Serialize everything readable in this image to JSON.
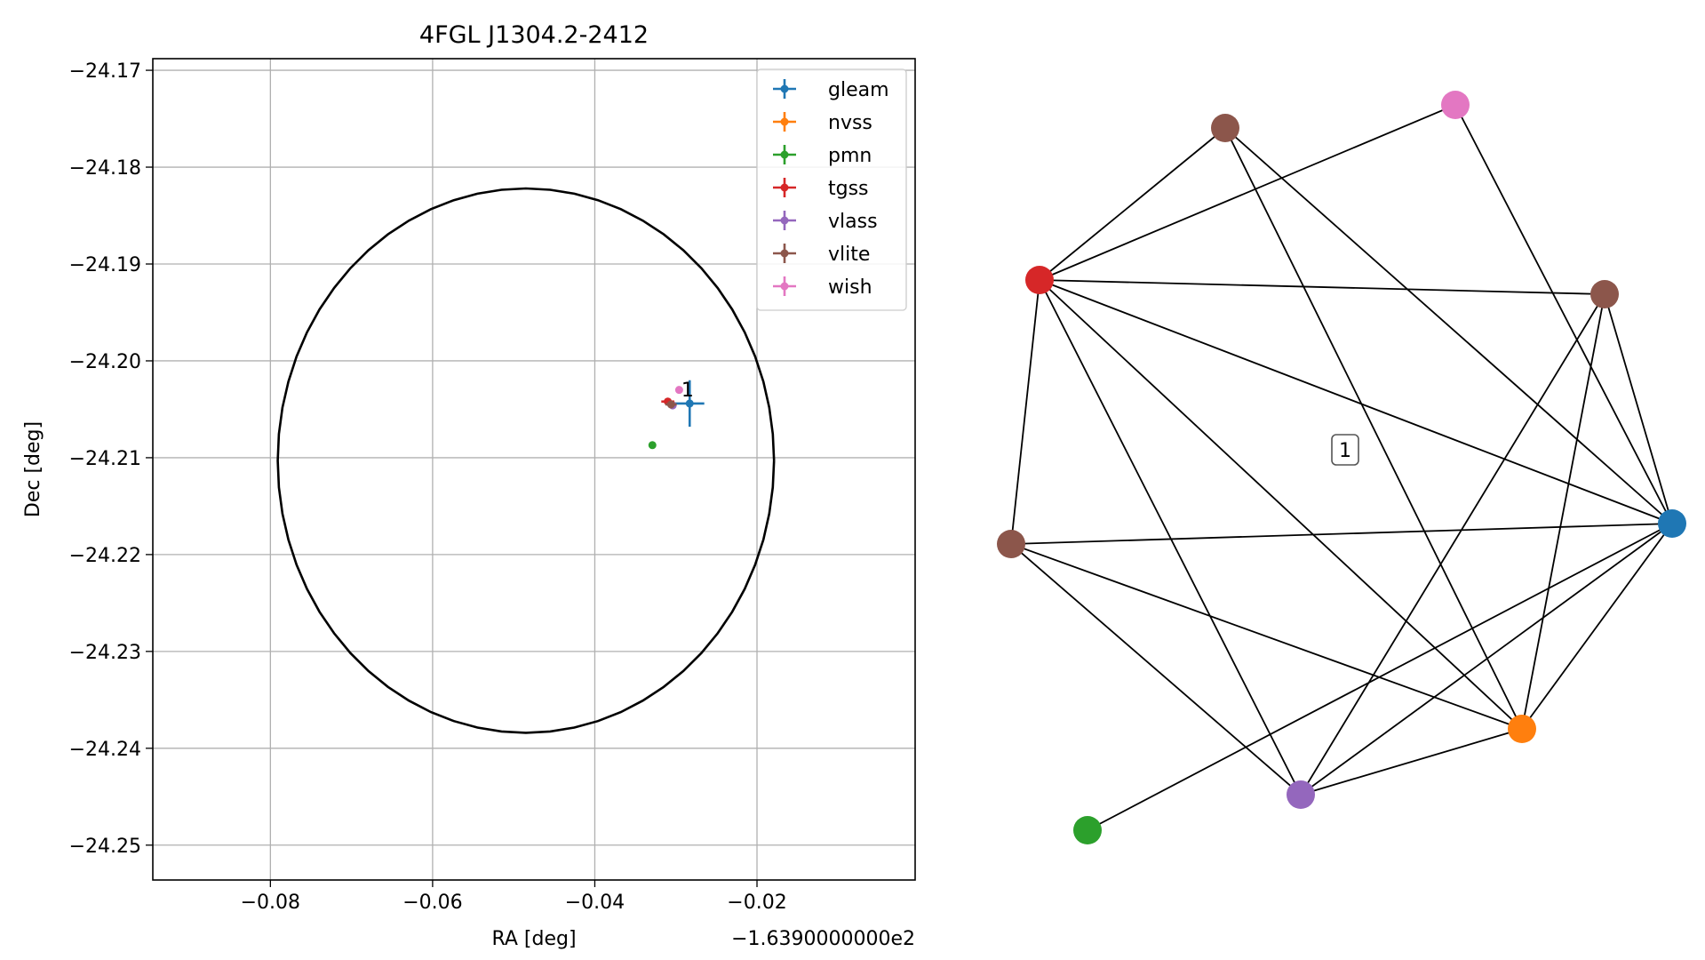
{
  "chart_data": [
    {
      "type": "scatter",
      "title": "4FGL J1304.2-2412",
      "xlabel": "RA [deg]",
      "ylabel": "Dec [deg]",
      "x_offset_label": "−1.6390000000e2",
      "xlim": [
        -0.0945,
        -0.0005
      ],
      "ylim": [
        -24.2536,
        -24.1688
      ],
      "xticks": [
        -0.08,
        -0.06,
        -0.04,
        -0.02
      ],
      "xtick_labels": [
        "−0.08",
        "−0.06",
        "−0.04",
        "−0.02"
      ],
      "yticks": [
        -24.17,
        -24.18,
        -24.19,
        -24.2,
        -24.21,
        -24.22,
        -24.23,
        -24.24,
        -24.25
      ],
      "ytick_labels": [
        "−24.17",
        "−24.18",
        "−24.19",
        "−24.20",
        "−24.21",
        "−24.22",
        "−24.23",
        "−24.24",
        "−24.25"
      ],
      "grid": true,
      "legend_position": "top-right",
      "ellipse": {
        "center_x": -0.0485,
        "center_y": -24.2103,
        "semi_x": 0.0306,
        "semi_y": 0.0281,
        "color": "#000000"
      },
      "series": [
        {
          "name": "gleam",
          "color": "#1f77b4",
          "x": -0.0283,
          "y": -24.2044,
          "xerr": 0.0018,
          "yerr": 0.0024
        },
        {
          "name": "nvss",
          "color": "#ff7f0e",
          "x": -0.0305,
          "y": -24.2045,
          "xerr": 0.0002,
          "yerr": 0.0002
        },
        {
          "name": "pmn",
          "color": "#2ca02c",
          "x": -0.0329,
          "y": -24.2087,
          "xerr": 0.0002,
          "yerr": 0.0002
        },
        {
          "name": "tgss",
          "color": "#d62728",
          "x": -0.031,
          "y": -24.2042,
          "xerr": 0.0008,
          "yerr": 0.0003
        },
        {
          "name": "vlass",
          "color": "#9467bd",
          "x": -0.0304,
          "y": -24.2046,
          "xerr": 0.0001,
          "yerr": 0.0001
        },
        {
          "name": "vlite",
          "color": "#8c564b",
          "x": -0.0306,
          "y": -24.2045,
          "xerr": 0.0007,
          "yerr": 0.0004
        },
        {
          "name": "wish",
          "color": "#e377c2",
          "x": -0.0296,
          "y": -24.203,
          "xerr": 0.0002,
          "yerr": 0.0002
        }
      ],
      "annotations": [
        {
          "text": "1",
          "x": -0.029,
          "y": -24.2033
        }
      ]
    },
    {
      "type": "network",
      "label": "1",
      "nodes": [
        {
          "id": "tgss",
          "color": "#d62728"
        },
        {
          "id": "vlite_a",
          "color": "#8c564b"
        },
        {
          "id": "wish",
          "color": "#e377c2"
        },
        {
          "id": "vlite_b",
          "color": "#8c564b"
        },
        {
          "id": "gleam",
          "color": "#1f77b4"
        },
        {
          "id": "vlite_c",
          "color": "#8c564b"
        },
        {
          "id": "nvss",
          "color": "#ff7f0e"
        },
        {
          "id": "vlass",
          "color": "#9467bd"
        },
        {
          "id": "pmn",
          "color": "#2ca02c"
        }
      ],
      "edges": [
        [
          "tgss",
          "vlite_a"
        ],
        [
          "tgss",
          "wish"
        ],
        [
          "tgss",
          "vlite_b"
        ],
        [
          "tgss",
          "gleam"
        ],
        [
          "tgss",
          "vlite_c"
        ],
        [
          "tgss",
          "nvss"
        ],
        [
          "tgss",
          "vlass"
        ],
        [
          "vlite_a",
          "gleam"
        ],
        [
          "vlite_a",
          "nvss"
        ],
        [
          "wish",
          "gleam"
        ],
        [
          "vlite_b",
          "gleam"
        ],
        [
          "vlite_b",
          "nvss"
        ],
        [
          "vlite_b",
          "vlass"
        ],
        [
          "vlite_c",
          "gleam"
        ],
        [
          "vlite_c",
          "nvss"
        ],
        [
          "vlite_c",
          "vlass"
        ],
        [
          "gleam",
          "nvss"
        ],
        [
          "gleam",
          "vlass"
        ],
        [
          "gleam",
          "pmn"
        ],
        [
          "nvss",
          "vlass"
        ]
      ]
    }
  ]
}
